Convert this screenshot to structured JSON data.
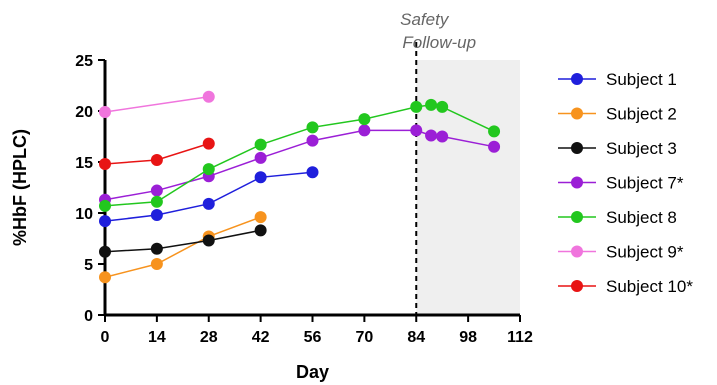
{
  "chart_data": {
    "type": "line",
    "xlabel": "Day",
    "ylabel": "%HbF (HPLC)",
    "xlim": [
      0,
      112
    ],
    "ylim": [
      0,
      25
    ],
    "x_ticks": [
      "0",
      "14",
      "28",
      "42",
      "56",
      "70",
      "84",
      "98",
      "112"
    ],
    "y_ticks": [
      "0",
      "5",
      "10",
      "15",
      "20",
      "25"
    ],
    "x_tick_values": [
      0,
      14,
      28,
      42,
      56,
      70,
      84,
      98,
      112
    ],
    "y_tick_values": [
      0,
      5,
      10,
      15,
      20,
      25
    ],
    "grid": false,
    "legend_position": "right",
    "annotation": {
      "lines": [
        "Safety",
        "Follow-up"
      ],
      "vline_x": 84,
      "shaded_range": [
        84,
        112
      ],
      "shade_color": "#efefef"
    },
    "series": [
      {
        "name": "Subject 1",
        "color": "#1f1fdc",
        "x": [
          0,
          14,
          28,
          42,
          56
        ],
        "y": [
          9.2,
          9.8,
          10.9,
          13.5,
          14.0
        ]
      },
      {
        "name": "Subject 2",
        "color": "#f7931e",
        "x": [
          0,
          14,
          28,
          42
        ],
        "y": [
          3.7,
          5.0,
          7.7,
          9.6
        ]
      },
      {
        "name": "Subject 3",
        "color": "#111111",
        "x": [
          0,
          14,
          28,
          42
        ],
        "y": [
          6.2,
          6.5,
          7.3,
          8.3
        ]
      },
      {
        "name": "Subject 7*",
        "color": "#9b1fd6",
        "x": [
          0,
          14,
          28,
          42,
          56,
          70,
          84,
          88,
          91,
          105
        ],
        "y": [
          11.3,
          12.2,
          13.6,
          15.4,
          17.1,
          18.1,
          18.1,
          17.6,
          17.5,
          16.5
        ]
      },
      {
        "name": "Subject 8",
        "color": "#22c71e",
        "x": [
          0,
          14,
          28,
          42,
          56,
          70,
          84,
          88,
          91,
          105
        ],
        "y": [
          10.7,
          11.1,
          14.3,
          16.7,
          18.4,
          19.2,
          20.4,
          20.6,
          20.4,
          18.0
        ]
      },
      {
        "name": "Subject 9*",
        "color": "#f075dd",
        "x": [
          0,
          28
        ],
        "y": [
          19.9,
          21.4
        ]
      },
      {
        "name": "Subject 10*",
        "color": "#e81414",
        "x": [
          0,
          14,
          28
        ],
        "y": [
          14.8,
          15.2,
          16.8
        ]
      }
    ]
  }
}
